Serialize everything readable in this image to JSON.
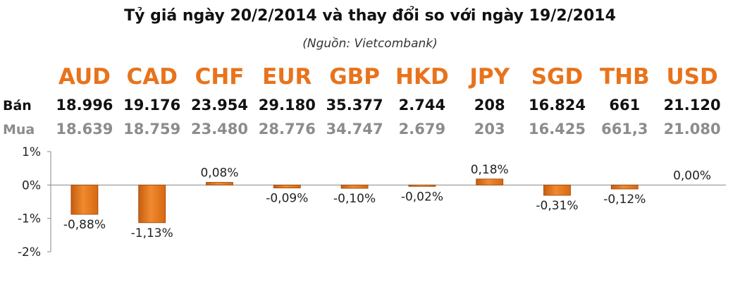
{
  "title": "Tỷ giá ngày 20/2/2014 và thay đổi so với ngày 19/2/2014",
  "subtitle": "(Nguồn: Vietcombank)",
  "rows": {
    "sell_label": "Bán",
    "buy_label": "Mua"
  },
  "colors": {
    "code": "#e8731c",
    "bar": "#e8731c",
    "bar_dark": "#9a4608",
    "axis": "#888888",
    "buy_text": "#8c8c8c"
  },
  "chart_data": {
    "type": "bar",
    "categories": [
      "AUD",
      "CAD",
      "CHF",
      "EUR",
      "GBP",
      "HKD",
      "JPY",
      "SGD",
      "THB",
      "USD"
    ],
    "sell": [
      "18.996",
      "19.176",
      "23.954",
      "29.180",
      "35.377",
      "2.744",
      "208",
      "16.824",
      "661",
      "21.120"
    ],
    "buy": [
      "18.639",
      "18.759",
      "23.480",
      "28.776",
      "34.747",
      "2.679",
      "203",
      "16.425",
      "661,3",
      "21.080"
    ],
    "values": [
      -0.88,
      -1.13,
      0.08,
      -0.09,
      -0.1,
      -0.02,
      0.18,
      -0.31,
      -0.12,
      0.0
    ],
    "value_labels": [
      "-0,88%",
      "-1,13%",
      "0,08%",
      "-0,09%",
      "-0,10%",
      "-0,02%",
      "0,18%",
      "-0,31%",
      "-0,12%",
      "0,00%"
    ],
    "ylim": [
      -2,
      1
    ],
    "yticks": [
      1,
      0,
      -1,
      -2
    ],
    "ytick_labels": [
      "1%",
      "0%",
      "-1%",
      "-2%"
    ],
    "grid": false,
    "legend": "none"
  }
}
